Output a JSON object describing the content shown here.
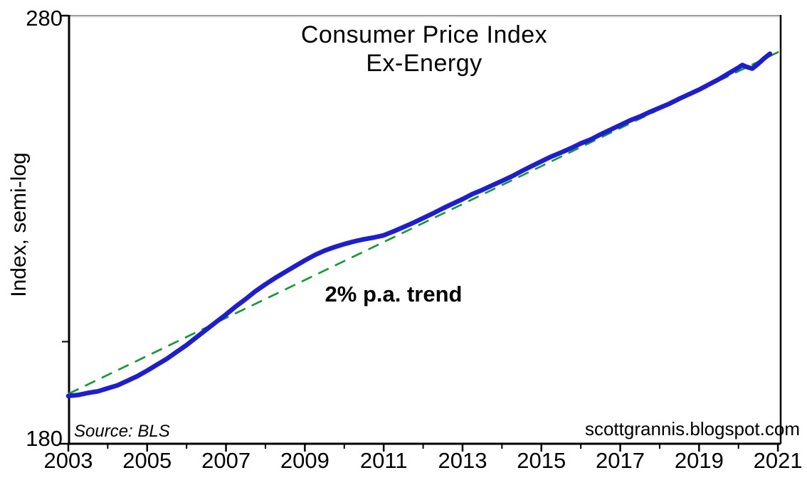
{
  "chart_data": {
    "type": "line",
    "title_line1": "Consumer Price Index",
    "title_line2": "Ex-Energy",
    "ylabel": "Index, semi-log",
    "legend": "none",
    "grid": false,
    "y_axis": {
      "scale": "log",
      "min": 180,
      "max": 280,
      "label_top": "280",
      "label_bottom": "180",
      "minor_tick_values": [
        200
      ]
    },
    "x_axis": {
      "start_year": 2003,
      "end_year": 2021.07,
      "major_tick_years": [
        2003,
        2005,
        2007,
        2009,
        2011,
        2013,
        2015,
        2017,
        2019,
        2021
      ],
      "minor_tick_years": [
        2004,
        2006,
        2008,
        2010,
        2012,
        2014,
        2016,
        2018,
        2020
      ]
    },
    "series": [
      {
        "name": "CPI Ex-Energy",
        "color": "#1d1dd8",
        "style": "solid",
        "points": [
          [
            2003.0,
            189.1
          ],
          [
            2003.25,
            189.3
          ],
          [
            2003.5,
            189.7
          ],
          [
            2003.75,
            190.0
          ],
          [
            2004.0,
            190.6
          ],
          [
            2004.25,
            191.2
          ],
          [
            2004.5,
            192.1
          ],
          [
            2004.75,
            193.0
          ],
          [
            2005.0,
            194.1
          ],
          [
            2005.25,
            195.3
          ],
          [
            2005.5,
            196.5
          ],
          [
            2005.75,
            197.9
          ],
          [
            2006.0,
            199.3
          ],
          [
            2006.25,
            200.9
          ],
          [
            2006.5,
            202.5
          ],
          [
            2006.75,
            204.1
          ],
          [
            2007.0,
            205.7
          ],
          [
            2007.25,
            207.4
          ],
          [
            2007.5,
            209.0
          ],
          [
            2007.75,
            210.7
          ],
          [
            2008.0,
            212.2
          ],
          [
            2008.25,
            213.6
          ],
          [
            2008.5,
            214.9
          ],
          [
            2008.75,
            216.2
          ],
          [
            2009.0,
            217.5
          ],
          [
            2009.25,
            218.7
          ],
          [
            2009.5,
            219.7
          ],
          [
            2009.75,
            220.5
          ],
          [
            2010.0,
            221.2
          ],
          [
            2010.25,
            221.8
          ],
          [
            2010.5,
            222.3
          ],
          [
            2010.75,
            222.7
          ],
          [
            2011.0,
            223.2
          ],
          [
            2011.25,
            224.1
          ],
          [
            2011.5,
            225.1
          ],
          [
            2011.75,
            226.1
          ],
          [
            2012.0,
            227.2
          ],
          [
            2012.25,
            228.3
          ],
          [
            2012.5,
            229.5
          ],
          [
            2012.75,
            230.6
          ],
          [
            2013.0,
            231.7
          ],
          [
            2013.25,
            232.9
          ],
          [
            2013.5,
            233.9
          ],
          [
            2013.75,
            235.0
          ],
          [
            2014.0,
            236.1
          ],
          [
            2014.25,
            237.2
          ],
          [
            2014.5,
            238.5
          ],
          [
            2014.75,
            239.7
          ],
          [
            2015.0,
            240.9
          ],
          [
            2015.25,
            242.1
          ],
          [
            2015.5,
            243.1
          ],
          [
            2015.75,
            244.2
          ],
          [
            2016.0,
            245.4
          ],
          [
            2016.25,
            246.4
          ],
          [
            2016.5,
            247.7
          ],
          [
            2016.75,
            248.9
          ],
          [
            2017.0,
            250.1
          ],
          [
            2017.25,
            251.3
          ],
          [
            2017.5,
            252.3
          ],
          [
            2017.75,
            253.5
          ],
          [
            2018.0,
            254.6
          ],
          [
            2018.25,
            255.7
          ],
          [
            2018.5,
            257.0
          ],
          [
            2018.75,
            258.2
          ],
          [
            2019.0,
            259.4
          ],
          [
            2019.25,
            260.8
          ],
          [
            2019.5,
            262.2
          ],
          [
            2019.75,
            263.8
          ],
          [
            2020.0,
            265.4
          ],
          [
            2020.1,
            266.1
          ],
          [
            2020.2,
            265.6
          ],
          [
            2020.35,
            265.1
          ],
          [
            2020.5,
            266.4
          ],
          [
            2020.65,
            267.9
          ],
          [
            2020.8,
            269.2
          ]
        ]
      },
      {
        "name": "2% p.a. trend",
        "color": "#0a9e28",
        "style": "dashed",
        "points": [
          [
            2003.0,
            189.5
          ],
          [
            2021.07,
            270.0
          ]
        ]
      }
    ],
    "annotations": {
      "trend_label": "2% p.a. trend",
      "source": "Source: BLS",
      "credit": "scottgrannis.blogspot.com"
    }
  },
  "colors": {
    "line_blue": "#1d1dd8",
    "trend_green": "#0a9e28",
    "axis_black": "#000000",
    "border_top_gray": "#9e9e9e",
    "border_top_highlight": "#e6e6e6",
    "background": "#ffffff"
  }
}
